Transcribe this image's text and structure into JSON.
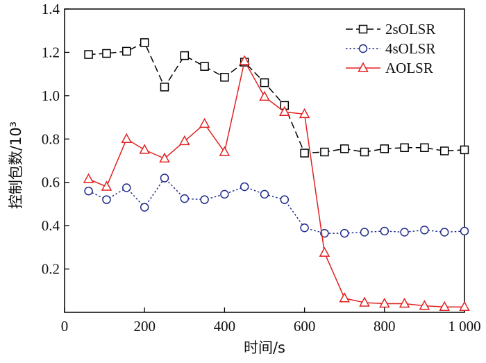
{
  "chart_data": {
    "type": "line",
    "title": "",
    "xlabel": "时间/s",
    "ylabel": "控制包数/10³",
    "xlim": [
      0,
      1000
    ],
    "ylim": [
      0,
      1.4
    ],
    "xticks": [
      0,
      200,
      400,
      600,
      800,
      1000
    ],
    "xtick_labels": [
      "0",
      "200",
      "400",
      "600",
      "800",
      "1 000"
    ],
    "yticks": [
      0.2,
      0.4,
      0.6,
      0.8,
      1.0,
      1.2,
      1.4
    ],
    "ytick_labels": [
      "0.2",
      "0.4",
      "0.6",
      "0.8",
      "1.0",
      "1.2",
      "1.4"
    ],
    "grid": false,
    "legend_position": "top-right",
    "x": [
      60,
      105,
      155,
      200,
      250,
      300,
      350,
      400,
      450,
      500,
      550,
      600,
      650,
      700,
      750,
      800,
      850,
      900,
      950,
      1000
    ],
    "series": [
      {
        "name": "2sOLSR",
        "color": "#000000",
        "marker": "square",
        "line_style": "long-dash",
        "values": [
          1.19,
          1.195,
          1.205,
          1.245,
          1.04,
          1.185,
          1.135,
          1.085,
          1.155,
          1.06,
          0.955,
          0.735,
          0.74,
          0.755,
          0.74,
          0.755,
          0.76,
          0.76,
          0.745,
          0.75
        ]
      },
      {
        "name": "4sOLSR",
        "color": "#1f2a8a",
        "marker": "circle",
        "line_style": "dotted",
        "values": [
          0.56,
          0.52,
          0.575,
          0.485,
          0.62,
          0.525,
          0.52,
          0.545,
          0.58,
          0.545,
          0.52,
          0.39,
          0.365,
          0.365,
          0.37,
          0.375,
          0.37,
          0.38,
          0.37,
          0.375
        ]
      },
      {
        "name": "AOLSR",
        "color": "#e02020",
        "marker": "triangle",
        "line_style": "solid",
        "values": [
          0.615,
          0.58,
          0.8,
          0.75,
          0.71,
          0.79,
          0.87,
          0.74,
          1.16,
          0.995,
          0.925,
          0.915,
          0.275,
          0.065,
          0.045,
          0.04,
          0.04,
          0.03,
          0.025,
          0.025
        ]
      }
    ]
  }
}
